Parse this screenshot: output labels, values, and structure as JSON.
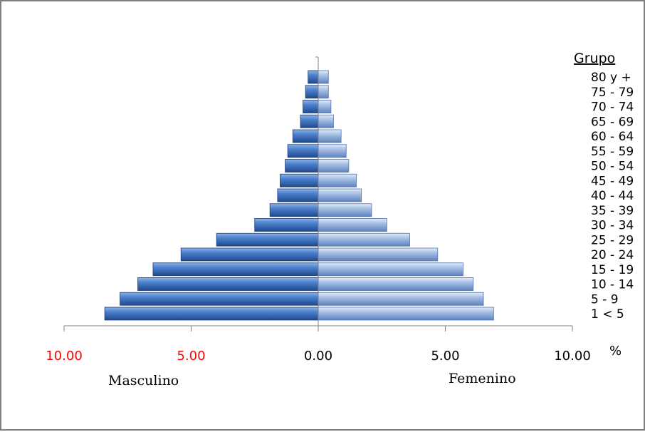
{
  "chart_data": {
    "type": "bar",
    "orientation": "horizontal-population-pyramid",
    "group_header": "Grupo",
    "unit_label": "%",
    "categories": [
      "1 <  5",
      "5 - 9",
      "10 - 14",
      "15 - 19",
      "20 - 24",
      "25 - 29",
      "30 - 34",
      "35 - 39",
      "40 - 44",
      "45 - 49",
      "50 - 54",
      "55 - 59",
      "60 - 64",
      "65 - 69",
      "70 - 74",
      "75 - 79",
      "80 y +"
    ],
    "series": [
      {
        "name": "Masculino",
        "values": [
          8.4,
          7.8,
          7.1,
          6.5,
          5.4,
          4.0,
          2.5,
          1.9,
          1.6,
          1.5,
          1.3,
          1.2,
          1.0,
          0.7,
          0.6,
          0.5,
          0.4
        ]
      },
      {
        "name": "Femenino",
        "values": [
          6.9,
          6.5,
          6.1,
          5.7,
          4.7,
          3.6,
          2.7,
          2.1,
          1.7,
          1.5,
          1.2,
          1.1,
          0.9,
          0.6,
          0.5,
          0.4,
          0.4
        ]
      }
    ],
    "xlim": [
      -10,
      10
    ],
    "xticks": [
      {
        "value": -10,
        "label": "10.00"
      },
      {
        "value": -5,
        "label": "5.00"
      },
      {
        "value": 0,
        "label": "0.00"
      },
      {
        "value": 5,
        "label": "5.00"
      },
      {
        "value": 10,
        "label": "10.00"
      }
    ],
    "colors": {
      "male": "#3a6cb5",
      "female": "#8eacd8",
      "negative_tick": "#ff0000",
      "axis": "#808080"
    },
    "grid": false,
    "legend_position": "right"
  },
  "labels": {
    "male": "Masculino",
    "female": "Femenino",
    "group_header": "Grupo",
    "unit": "%"
  }
}
